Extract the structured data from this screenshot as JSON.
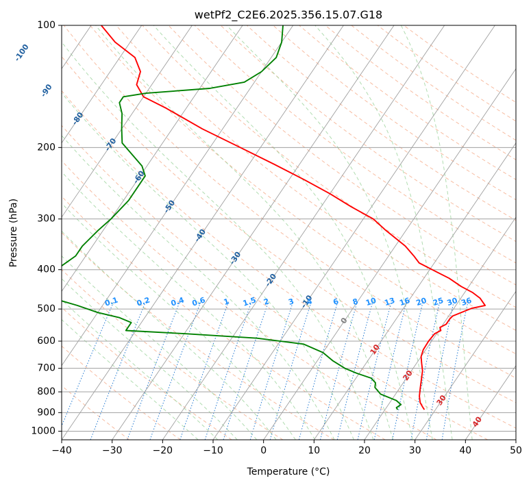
{
  "chart_data": {
    "type": "skew-t",
    "title": "wetPf2_C2E6.2025.356.15.07.G18",
    "xlabel": "Temperature (°C)",
    "ylabel": "Pressure (hPa)",
    "xlim": [
      -40,
      50
    ],
    "ylim": [
      1050,
      100
    ],
    "x_ticks": [
      -40,
      -30,
      -20,
      -10,
      0,
      10,
      20,
      30,
      40,
      50
    ],
    "x_tick_labels": [
      "−40",
      "−30",
      "−20",
      "−10",
      "0",
      "10",
      "20",
      "30",
      "40",
      "50"
    ],
    "y_ticks": [
      100,
      200,
      300,
      400,
      500,
      600,
      700,
      800,
      900,
      1000
    ],
    "y_tick_labels": [
      "100",
      "200",
      "300",
      "400",
      "500",
      "600",
      "700",
      "800",
      "900",
      "1000"
    ],
    "isotherm_labels": [
      {
        "t": -100,
        "p": 117,
        "text": "-100"
      },
      {
        "t": -90,
        "p": 145,
        "text": "-90"
      },
      {
        "t": -80,
        "p": 170,
        "text": "-80"
      },
      {
        "t": -70,
        "p": 197,
        "text": "-70"
      },
      {
        "t": -60,
        "p": 237,
        "text": "-60"
      },
      {
        "t": -50,
        "p": 280,
        "text": "-50"
      },
      {
        "t": -40,
        "p": 330,
        "text": "-40"
      },
      {
        "t": -30,
        "p": 375,
        "text": "-30"
      },
      {
        "t": -20,
        "p": 425,
        "text": "-20"
      },
      {
        "t": -10,
        "p": 480,
        "text": "-10"
      },
      {
        "t": 0,
        "p": 535,
        "text": "0"
      },
      {
        "t": 10,
        "p": 630,
        "text": "10"
      },
      {
        "t": 20,
        "p": 730,
        "text": "20"
      },
      {
        "t": 30,
        "p": 840,
        "text": "30"
      },
      {
        "t": 40,
        "p": 950,
        "text": "40"
      }
    ],
    "mixing_ratio_labels": [
      "0.1",
      "0.2",
      "0.4",
      "0.6",
      "1",
      "1.5",
      "2",
      "3",
      "4",
      "6",
      "8",
      "10",
      "13",
      "16",
      "20",
      "25",
      "30",
      "36"
    ],
    "series": [
      {
        "name": "temperature",
        "color": "#ff0000",
        "points": [
          {
            "p": 885,
            "t": 27.8
          },
          {
            "p": 870,
            "t": 27.0
          },
          {
            "p": 850,
            "t": 26.0
          },
          {
            "p": 820,
            "t": 25.0
          },
          {
            "p": 780,
            "t": 24.0
          },
          {
            "p": 740,
            "t": 23.0
          },
          {
            "p": 710,
            "t": 22.2
          },
          {
            "p": 680,
            "t": 21.0
          },
          {
            "p": 655,
            "t": 20.0
          },
          {
            "p": 630,
            "t": 19.5
          },
          {
            "p": 600,
            "t": 19.4
          },
          {
            "p": 575,
            "t": 19.6
          },
          {
            "p": 565,
            "t": 20.4
          },
          {
            "p": 555,
            "t": 19.8
          },
          {
            "p": 545,
            "t": 20.6
          },
          {
            "p": 530,
            "t": 20.6
          },
          {
            "p": 520,
            "t": 20.8
          },
          {
            "p": 510,
            "t": 22.0
          },
          {
            "p": 498,
            "t": 23.5
          },
          {
            "p": 490,
            "t": 25.8
          },
          {
            "p": 482,
            "t": 25.0
          },
          {
            "p": 470,
            "t": 23.8
          },
          {
            "p": 455,
            "t": 21.5
          },
          {
            "p": 440,
            "t": 18.5
          },
          {
            "p": 420,
            "t": 15.0
          },
          {
            "p": 400,
            "t": 10.5
          },
          {
            "p": 385,
            "t": 7.0
          },
          {
            "p": 370,
            "t": 5.0
          },
          {
            "p": 350,
            "t": 2.0
          },
          {
            "p": 320,
            "t": -4.0
          },
          {
            "p": 300,
            "t": -8.0
          },
          {
            "p": 280,
            "t": -14.0
          },
          {
            "p": 260,
            "t": -20.0
          },
          {
            "p": 240,
            "t": -27.0
          },
          {
            "p": 220,
            "t": -35.0
          },
          {
            "p": 200,
            "t": -44.0
          },
          {
            "p": 180,
            "t": -54.0
          },
          {
            "p": 160,
            "t": -64.0
          },
          {
            "p": 150,
            "t": -70.0
          },
          {
            "p": 140,
            "t": -73.0
          },
          {
            "p": 130,
            "t": -74.0
          },
          {
            "p": 120,
            "t": -77.0
          },
          {
            "p": 110,
            "t": -83.0
          },
          {
            "p": 100,
            "t": -88.0
          }
        ]
      },
      {
        "name": "dewpoint",
        "color": "#008000",
        "points": [
          {
            "p": 885,
            "t": 22.5
          },
          {
            "p": 875,
            "t": 22.0
          },
          {
            "p": 860,
            "t": 22.5
          },
          {
            "p": 840,
            "t": 21.0
          },
          {
            "p": 810,
            "t": 17.0
          },
          {
            "p": 780,
            "t": 15.0
          },
          {
            "p": 760,
            "t": 14.5
          },
          {
            "p": 740,
            "t": 13.0
          },
          {
            "p": 720,
            "t": 9.5
          },
          {
            "p": 700,
            "t": 6.5
          },
          {
            "p": 670,
            "t": 3.0
          },
          {
            "p": 640,
            "t": 0.0
          },
          {
            "p": 610,
            "t": -5.0
          },
          {
            "p": 590,
            "t": -15.0
          },
          {
            "p": 575,
            "t": -30.0
          },
          {
            "p": 565,
            "t": -42.0
          },
          {
            "p": 560,
            "t": -42.0
          },
          {
            "p": 540,
            "t": -42.0
          },
          {
            "p": 525,
            "t": -45.0
          },
          {
            "p": 510,
            "t": -50.0
          },
          {
            "p": 490,
            "t": -55.0
          },
          {
            "p": 470,
            "t": -61.0
          },
          {
            "p": 450,
            "t": -65.0
          },
          {
            "p": 435,
            "t": -65.0
          },
          {
            "p": 400,
            "t": -64.0
          },
          {
            "p": 370,
            "t": -62.0
          },
          {
            "p": 350,
            "t": -62.0
          },
          {
            "p": 320,
            "t": -61.0
          },
          {
            "p": 300,
            "t": -60.0
          },
          {
            "p": 270,
            "t": -59.0
          },
          {
            "p": 250,
            "t": -59.0
          },
          {
            "p": 235,
            "t": -59.0
          },
          {
            "p": 222,
            "t": -61.0
          },
          {
            "p": 210,
            "t": -64.0
          },
          {
            "p": 195,
            "t": -68.0
          },
          {
            "p": 180,
            "t": -70.0
          },
          {
            "p": 165,
            "t": -72.0
          },
          {
            "p": 155,
            "t": -74.0
          },
          {
            "p": 150,
            "t": -74.0
          },
          {
            "p": 147,
            "t": -70.0
          },
          {
            "p": 143,
            "t": -58.0
          },
          {
            "p": 138,
            "t": -52.0
          },
          {
            "p": 130,
            "t": -50.0
          },
          {
            "p": 120,
            "t": -49.0
          },
          {
            "p": 110,
            "t": -50.0
          },
          {
            "p": 100,
            "t": -52.0
          }
        ]
      }
    ]
  }
}
